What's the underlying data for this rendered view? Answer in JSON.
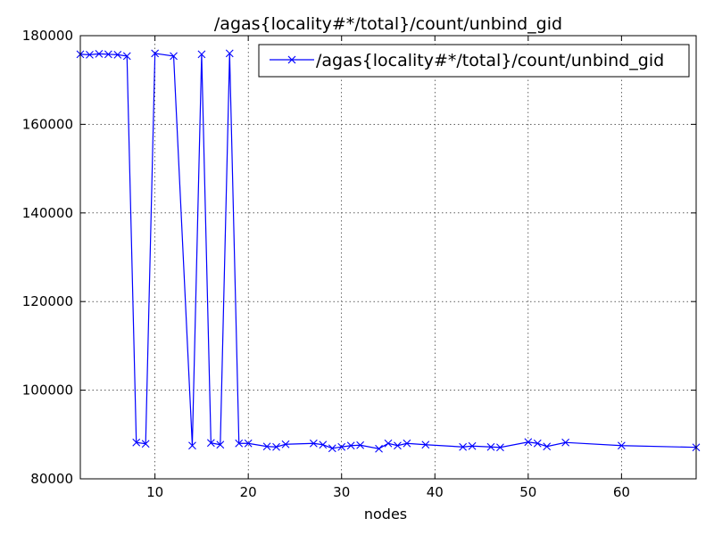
{
  "chart_data": {
    "type": "line",
    "title": "/agas{locality#*/total}/count/unbind_gid",
    "xlabel": "nodes",
    "ylabel": "",
    "xlim": [
      2,
      68
    ],
    "ylim": [
      80000,
      180000
    ],
    "xticks": [
      10,
      20,
      30,
      40,
      50,
      60
    ],
    "yticks": [
      80000,
      100000,
      120000,
      140000,
      160000,
      180000
    ],
    "grid": true,
    "legend_position": "top-right",
    "marker": "x",
    "color": "#0000ff",
    "series": [
      {
        "name": "/agas{locality#*/total}/count/unbind_gid",
        "x": [
          2,
          3,
          4,
          5,
          6,
          7,
          8,
          9,
          10,
          12,
          14,
          15,
          16,
          17,
          18,
          19,
          20,
          22,
          23,
          24,
          27,
          28,
          29,
          30,
          31,
          32,
          34,
          35,
          36,
          37,
          39,
          43,
          44,
          46,
          47,
          50,
          51,
          52,
          54,
          60,
          68
        ],
        "values": [
          175800,
          175700,
          175900,
          175800,
          175700,
          175400,
          88200,
          87900,
          176000,
          175400,
          87500,
          175800,
          88100,
          87700,
          176000,
          88000,
          88000,
          87300,
          87200,
          87800,
          88000,
          87700,
          86900,
          87200,
          87500,
          87600,
          86800,
          88000,
          87500,
          88000,
          87700,
          87200,
          87400,
          87200,
          87100,
          88300,
          88000,
          87300,
          88200,
          87500,
          87100
        ]
      }
    ]
  }
}
